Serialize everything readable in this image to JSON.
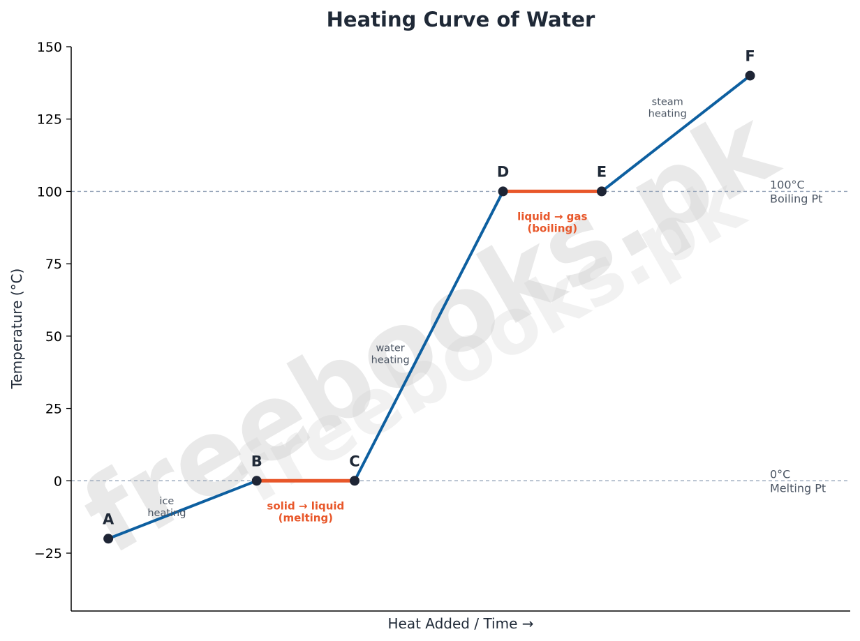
{
  "chart_data": {
    "type": "line",
    "title": "Heating Curve of Water",
    "xlabel": "Heat Added / Time  →",
    "ylabel": "Temperature (°C)",
    "ylim": [
      -45,
      150
    ],
    "xlim": [
      0,
      10.5
    ],
    "yticks": [
      -25,
      0,
      25,
      50,
      75,
      100,
      125,
      150
    ],
    "yticks_labels": [
      "−25",
      "0",
      "25",
      "50",
      "75",
      "100",
      "125",
      "150"
    ],
    "grid": false,
    "colors": {
      "heating": "#0d5fa0",
      "phase": "#e8572a",
      "point": "#1e2535",
      "reference": "#94a3b8"
    },
    "points": [
      {
        "label": "A",
        "x": 0.5,
        "y": -20
      },
      {
        "label": "B",
        "x": 2.5,
        "y": 0
      },
      {
        "label": "C",
        "x": 3.82,
        "y": 0
      },
      {
        "label": "D",
        "x": 5.82,
        "y": 100
      },
      {
        "label": "E",
        "x": 7.15,
        "y": 100
      },
      {
        "label": "F",
        "x": 9.15,
        "y": 140
      }
    ],
    "segments": [
      {
        "from": 0,
        "to": 1,
        "kind": "heating",
        "label": [
          "ice",
          "heating"
        ]
      },
      {
        "from": 1,
        "to": 2,
        "kind": "phase",
        "label": [
          "solid → liquid",
          "(melting)"
        ]
      },
      {
        "from": 2,
        "to": 3,
        "kind": "heating",
        "label": [
          "water",
          "heating"
        ]
      },
      {
        "from": 3,
        "to": 4,
        "kind": "phase",
        "label": [
          "liquid → gas",
          "(boiling)"
        ]
      },
      {
        "from": 4,
        "to": 5,
        "kind": "heating",
        "label": [
          "steam",
          "heating"
        ]
      }
    ],
    "reference_lines": [
      {
        "y": 0,
        "label": [
          "0°C",
          "Melting Pt"
        ]
      },
      {
        "y": 100,
        "label": [
          "100°C",
          "Boiling Pt"
        ]
      }
    ],
    "watermark": [
      "freebooks.pk",
      "freebooks.pk"
    ]
  }
}
